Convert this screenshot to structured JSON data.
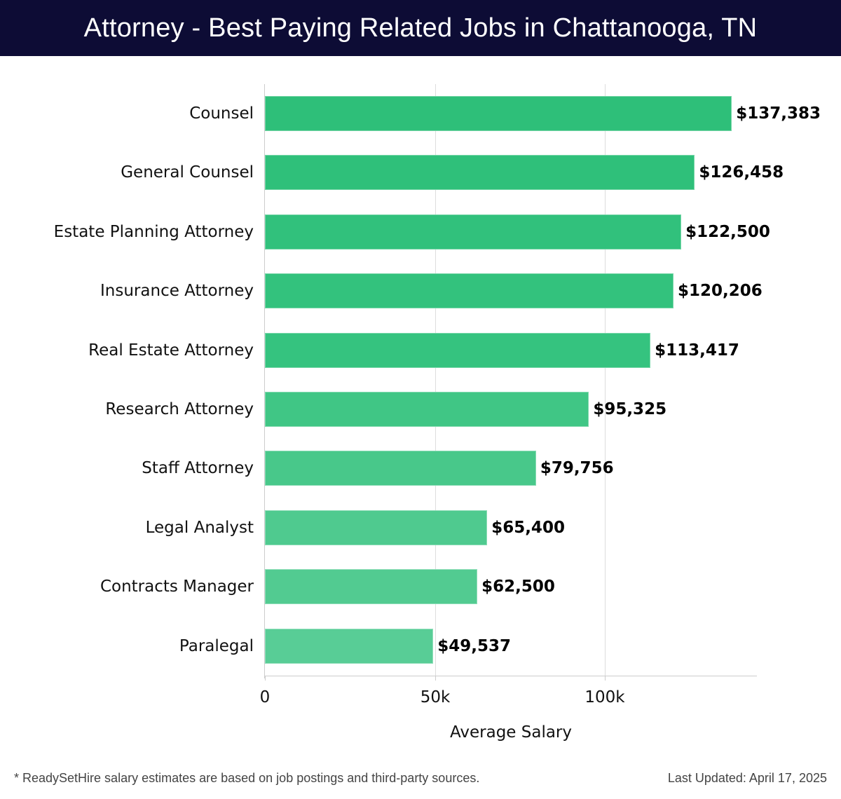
{
  "header": {
    "title": "Attorney - Best Paying Related Jobs in Chattanooga, TN"
  },
  "chart_data": {
    "type": "bar",
    "orientation": "horizontal",
    "title": "Attorney - Best Paying Related Jobs in Chattanooga, TN",
    "xlabel": "Average Salary",
    "ylabel": "",
    "categories": [
      "Counsel",
      "General Counsel",
      "Estate Planning Attorney",
      "Insurance Attorney",
      "Real Estate Attorney",
      "Research Attorney",
      "Staff Attorney",
      "Legal Analyst",
      "Contracts Manager",
      "Paralegal"
    ],
    "values": [
      137383,
      126458,
      122500,
      120206,
      113417,
      95325,
      79756,
      65400,
      62500,
      49537
    ],
    "value_labels": [
      "$137,383",
      "$126,458",
      "$122,500",
      "$120,206",
      "$113,417",
      "$95,325",
      "$79,756",
      "$65,400",
      "$62,500",
      "$49,537"
    ],
    "bar_colors": [
      "#2ebf79",
      "#2fc07a",
      "#31c17c",
      "#33c27d",
      "#35c37f",
      "#40c685",
      "#48c88a",
      "#4fca8f",
      "#52cb91",
      "#58cd96"
    ],
    "xticks": [
      0,
      50000,
      100000
    ],
    "xtick_labels": [
      "0",
      "50k",
      "100k"
    ],
    "xlim": [
      0,
      145000
    ],
    "grid": true,
    "legend": null
  },
  "footer": {
    "note": "* ReadySetHire salary estimates are based on job postings and third-party sources.",
    "updated": "Last Updated: April 17, 2025"
  }
}
